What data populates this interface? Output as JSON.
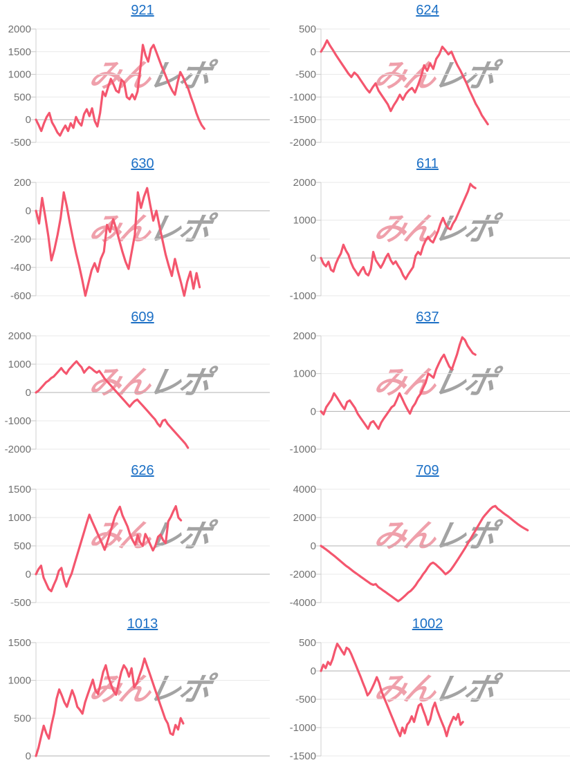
{
  "watermark": {
    "pink": "みん",
    "gray": "レポ"
  },
  "style": {
    "line_color": "#f4566e",
    "grid_color": "#e8e8e8",
    "zero_line_color": "#b0b0b0",
    "axis_color": "#cfcfcf",
    "tick_color": "#c6c6c6",
    "tick_label_color": "#717171",
    "title_color": "#1b6fc5"
  },
  "chart_data": {
    "type": "line",
    "description": "Grid of 10 cumulative payout sparkline charts, each titled by machine number (blue link). Pink series on light gridlines, zero line darker.",
    "legend": "none",
    "grid": true,
    "charts": [
      {
        "title": "921",
        "ylim": [
          -500,
          2000
        ],
        "yticks": [
          2000,
          1500,
          1000,
          500,
          0,
          -500
        ],
        "x_extent": 0.72,
        "values": [
          0,
          -120,
          -250,
          -80,
          60,
          150,
          -60,
          -160,
          -280,
          -350,
          -230,
          -130,
          -250,
          -80,
          -180,
          60,
          -60,
          -130,
          120,
          230,
          80,
          250,
          -30,
          -150,
          150,
          620,
          520,
          720,
          900,
          780,
          640,
          600,
          880,
          820,
          500,
          450,
          560,
          450,
          620,
          1100,
          1650,
          1420,
          1280,
          1560,
          1650,
          1500,
          1340,
          1180,
          1050,
          900,
          760,
          640,
          550,
          820,
          1050,
          940,
          800,
          680,
          500,
          340,
          150,
          0,
          -120,
          -200
        ]
      },
      {
        "title": "624",
        "ylim": [
          -2000,
          500
        ],
        "yticks": [
          500,
          0,
          -500,
          -1000,
          -1500,
          -2000
        ],
        "x_extent": 0.67,
        "values": [
          0,
          110,
          250,
          130,
          30,
          -80,
          -180,
          -280,
          -380,
          -480,
          -560,
          -460,
          -520,
          -620,
          -720,
          -820,
          -900,
          -790,
          -700,
          -860,
          -960,
          -1060,
          -1160,
          -1310,
          -1180,
          -1080,
          -950,
          -1060,
          -930,
          -850,
          -800,
          -900,
          -740,
          -550,
          -300,
          -420,
          -260,
          -380,
          -160,
          -60,
          110,
          30,
          -60,
          0,
          -160,
          -300,
          -420,
          -560,
          -700,
          -860,
          -1000,
          -1150,
          -1260,
          -1400,
          -1500,
          -1600
        ]
      },
      {
        "title": "630",
        "ylim": [
          -600,
          200
        ],
        "yticks": [
          200,
          0,
          -200,
          -400,
          -600
        ],
        "x_extent": 0.7,
        "values": [
          0,
          -90,
          90,
          -40,
          -180,
          -350,
          -270,
          -170,
          -50,
          130,
          30,
          -90,
          -200,
          -300,
          -390,
          -490,
          -600,
          -510,
          -420,
          -370,
          -430,
          -340,
          -290,
          -100,
          -150,
          -60,
          -130,
          -210,
          -290,
          -360,
          -410,
          -290,
          -170,
          130,
          20,
          100,
          160,
          40,
          -70,
          0,
          -110,
          -210,
          -310,
          -390,
          -460,
          -340,
          -430,
          -510,
          -600,
          -500,
          -430,
          -550,
          -440,
          -540
        ]
      },
      {
        "title": "611",
        "ylim": [
          -1000,
          2000
        ],
        "yticks": [
          2000,
          1000,
          0,
          -1000
        ],
        "x_extent": 0.62,
        "values": [
          0,
          -150,
          -220,
          -100,
          -310,
          -360,
          -150,
          0,
          120,
          350,
          200,
          90,
          -110,
          -260,
          -360,
          -460,
          -340,
          -240,
          -410,
          -460,
          -300,
          160,
          -60,
          -160,
          -260,
          -140,
          10,
          110,
          -60,
          -160,
          -90,
          -210,
          -310,
          -460,
          -560,
          -440,
          -340,
          -240,
          60,
          160,
          90,
          310,
          460,
          560,
          460,
          410,
          560,
          710,
          910,
          1060,
          900,
          790,
          760,
          910,
          1010,
          1160,
          1310,
          1460,
          1610,
          1760,
          1960,
          1890,
          1850
        ]
      },
      {
        "title": "609",
        "ylim": [
          -2000,
          2000
        ],
        "yticks": [
          2000,
          1000,
          0,
          -1000,
          -2000
        ],
        "x_extent": 0.65,
        "values": [
          0,
          60,
          160,
          260,
          360,
          420,
          510,
          560,
          660,
          760,
          860,
          740,
          660,
          810,
          910,
          1010,
          1100,
          990,
          890,
          700,
          810,
          900,
          840,
          760,
          700,
          760,
          640,
          500,
          400,
          300,
          200,
          100,
          0,
          -100,
          -200,
          -300,
          -400,
          -500,
          -390,
          -300,
          -250,
          -350,
          -450,
          -550,
          -650,
          -750,
          -850,
          -950,
          -1100,
          -1200,
          -1000,
          -960,
          -1110,
          -1210,
          -1310,
          -1410,
          -1510,
          -1610,
          -1710,
          -1810,
          -1950
        ]
      },
      {
        "title": "637",
        "ylim": [
          -1000,
          2000
        ],
        "yticks": [
          2000,
          1000,
          0,
          -1000
        ],
        "x_extent": 0.62,
        "values": [
          0,
          -80,
          110,
          210,
          310,
          480,
          380,
          270,
          150,
          60,
          250,
          290,
          190,
          90,
          -60,
          -160,
          -260,
          -360,
          -460,
          -300,
          -260,
          -360,
          -460,
          -300,
          -190,
          -90,
          10,
          110,
          160,
          310,
          480,
          340,
          190,
          60,
          -60,
          110,
          210,
          360,
          460,
          610,
          760,
          1000,
          950,
          890,
          1110,
          1260,
          1400,
          1500,
          1340,
          1190,
          1110,
          1310,
          1510,
          1760,
          1960,
          1890,
          1740,
          1640,
          1540,
          1500
        ]
      },
      {
        "title": "626",
        "ylim": [
          -500,
          1500
        ],
        "yticks": [
          1500,
          1000,
          500,
          0,
          -500
        ],
        "x_extent": 0.62,
        "values": [
          0,
          90,
          150,
          -60,
          -160,
          -260,
          -300,
          -190,
          -90,
          60,
          110,
          -90,
          -220,
          -90,
          10,
          160,
          310,
          460,
          610,
          760,
          910,
          1050,
          940,
          840,
          740,
          640,
          540,
          430,
          560,
          710,
          860,
          1010,
          1110,
          1190,
          1040,
          940,
          840,
          700,
          600,
          520,
          690,
          560,
          500,
          710,
          620,
          520,
          420,
          510,
          660,
          700,
          600,
          550,
          930,
          1010,
          1110,
          1200,
          1000,
          950
        ]
      },
      {
        "title": "709",
        "ylim": [
          -4000,
          4000
        ],
        "yticks": [
          4000,
          2000,
          0,
          -2000,
          -4000
        ],
        "x_extent": 0.83,
        "values": [
          0,
          -120,
          -250,
          -380,
          -520,
          -660,
          -800,
          -950,
          -1100,
          -1250,
          -1400,
          -1520,
          -1660,
          -1800,
          -1920,
          -2050,
          -2180,
          -2300,
          -2430,
          -2550,
          -2680,
          -2750,
          -2700,
          -2900,
          -3020,
          -3150,
          -3270,
          -3400,
          -3520,
          -3650,
          -3780,
          -3900,
          -3790,
          -3640,
          -3480,
          -3300,
          -3180,
          -3000,
          -2780,
          -2500,
          -2280,
          -2000,
          -1780,
          -1500,
          -1280,
          -1180,
          -1300,
          -1460,
          -1620,
          -1800,
          -2000,
          -1880,
          -1720,
          -1480,
          -1220,
          -950,
          -680,
          -400,
          -120,
          180,
          480,
          780,
          1080,
          1380,
          1680,
          1980,
          2200,
          2400,
          2600,
          2750,
          2820,
          2620,
          2500,
          2350,
          2220,
          2100,
          1960,
          1820,
          1680,
          1540,
          1420,
          1300,
          1200,
          1100
        ]
      },
      {
        "title": "1013",
        "ylim": [
          0,
          1500
        ],
        "yticks": [
          1500,
          1000,
          500,
          0
        ],
        "x_extent": 0.63,
        "values": [
          0,
          110,
          260,
          400,
          300,
          230,
          410,
          560,
          760,
          880,
          800,
          710,
          650,
          760,
          870,
          780,
          650,
          610,
          560,
          710,
          810,
          910,
          1010,
          870,
          820,
          960,
          1110,
          1200,
          1050,
          950,
          860,
          810,
          960,
          1110,
          1200,
          1150,
          1050,
          1160,
          910,
          960,
          1060,
          1160,
          1290,
          1190,
          1090,
          990,
          890,
          790,
          690,
          590,
          490,
          430,
          300,
          280,
          410,
          350,
          500,
          430
        ]
      },
      {
        "title": "1002",
        "ylim": [
          -1500,
          500
        ],
        "yticks": [
          500,
          0,
          -500,
          -1000,
          -1500
        ],
        "x_extent": 0.57,
        "values": [
          0,
          110,
          50,
          160,
          110,
          210,
          360,
          480,
          420,
          350,
          290,
          410,
          380,
          300,
          200,
          100,
          0,
          -100,
          -210,
          -310,
          -430,
          -380,
          -300,
          -210,
          -110,
          -210,
          -360,
          -460,
          -560,
          -660,
          -760,
          -860,
          -960,
          -1060,
          -1150,
          -1000,
          -1100,
          -950,
          -900,
          -800,
          -900,
          -750,
          -610,
          -580,
          -700,
          -810,
          -950,
          -850,
          -660,
          -560,
          -700,
          -810,
          -910,
          -1010,
          -1150,
          -1000,
          -900,
          -810,
          -860,
          -760,
          -950,
          -900
        ]
      }
    ]
  }
}
